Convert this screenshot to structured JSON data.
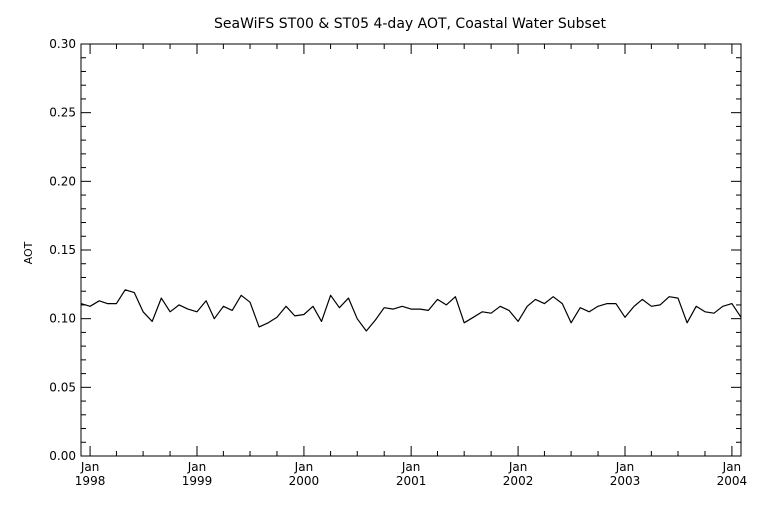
{
  "chart_data": {
    "type": "line",
    "title": "SeaWiFS ST00 & ST05 4-day AOT, Coastal Water Subset",
    "xlabel": "",
    "ylabel": "AOT",
    "ylim": [
      0.0,
      0.3
    ],
    "y_ticks": [
      "0.00",
      "0.05",
      "0.10",
      "0.15",
      "0.20",
      "0.25",
      "0.30"
    ],
    "y_tick_values": [
      0.0,
      0.05,
      0.1,
      0.15,
      0.2,
      0.25,
      0.3
    ],
    "xlim": [
      "1997-12-01",
      "2004-02-01"
    ],
    "x_ticks": [
      {
        "month": "Jan",
        "year": "1998",
        "date": "1998-01-01"
      },
      {
        "month": "Jan",
        "year": "1999",
        "date": "1999-01-01"
      },
      {
        "month": "Jan",
        "year": "2000",
        "date": "2000-01-01"
      },
      {
        "month": "Jan",
        "year": "2001",
        "date": "2001-01-01"
      },
      {
        "month": "Jan",
        "year": "2002",
        "date": "2002-01-01"
      },
      {
        "month": "Jan",
        "year": "2003",
        "date": "2003-01-01"
      },
      {
        "month": "Jan",
        "year": "2004",
        "date": "2004-01-01"
      }
    ],
    "grid": false,
    "series": [
      {
        "x": [
          "1997-12-01",
          "1998-01-01",
          "1998-02-01",
          "1998-03-01",
          "1998-04-01",
          "1998-05-01",
          "1998-06-01",
          "1998-07-01",
          "1998-08-01",
          "1998-09-01",
          "1998-10-01",
          "1998-11-01",
          "1998-12-01",
          "1999-01-01",
          "1999-02-01",
          "1999-03-01",
          "1999-04-01",
          "1999-05-01",
          "1999-06-01",
          "1999-07-01",
          "1999-08-01",
          "1999-09-01",
          "1999-10-01",
          "1999-11-01",
          "1999-12-01",
          "2000-01-01",
          "2000-02-01",
          "2000-03-01",
          "2000-04-01",
          "2000-05-01",
          "2000-06-01",
          "2000-07-01",
          "2000-08-01",
          "2000-09-01",
          "2000-10-01",
          "2000-11-01",
          "2000-12-01",
          "2001-01-01",
          "2001-02-01",
          "2001-03-01",
          "2001-04-01",
          "2001-05-01",
          "2001-06-01",
          "2001-07-01",
          "2001-08-01",
          "2001-09-01",
          "2001-10-01",
          "2001-11-01",
          "2001-12-01",
          "2002-01-01",
          "2002-02-01",
          "2002-03-01",
          "2002-04-01",
          "2002-05-01",
          "2002-06-01",
          "2002-07-01",
          "2002-08-01",
          "2002-09-01",
          "2002-10-01",
          "2002-11-01",
          "2002-12-01",
          "2003-01-01",
          "2003-02-01",
          "2003-03-01",
          "2003-04-01",
          "2003-05-01",
          "2003-06-01",
          "2003-07-01",
          "2003-08-01",
          "2003-09-01",
          "2003-10-01",
          "2003-11-01",
          "2003-12-01",
          "2004-01-01",
          "2004-02-01"
        ],
        "values": [
          0.111,
          0.109,
          0.113,
          0.111,
          0.111,
          0.121,
          0.119,
          0.105,
          0.098,
          0.115,
          0.105,
          0.11,
          0.107,
          0.105,
          0.113,
          0.1,
          0.109,
          0.106,
          0.117,
          0.112,
          0.094,
          0.097,
          0.101,
          0.109,
          0.102,
          0.103,
          0.109,
          0.098,
          0.117,
          0.108,
          0.115,
          0.1,
          0.091,
          0.099,
          0.108,
          0.107,
          0.109,
          0.107,
          0.107,
          0.106,
          0.114,
          0.11,
          0.116,
          0.097,
          0.101,
          0.105,
          0.104,
          0.109,
          0.106,
          0.098,
          0.109,
          0.114,
          0.111,
          0.116,
          0.111,
          0.097,
          0.108,
          0.105,
          0.109,
          0.111,
          0.111,
          0.101,
          0.109,
          0.114,
          0.109,
          0.11,
          0.116,
          0.115,
          0.097,
          0.109,
          0.105,
          0.104,
          0.109,
          0.111,
          0.101
        ]
      }
    ]
  }
}
